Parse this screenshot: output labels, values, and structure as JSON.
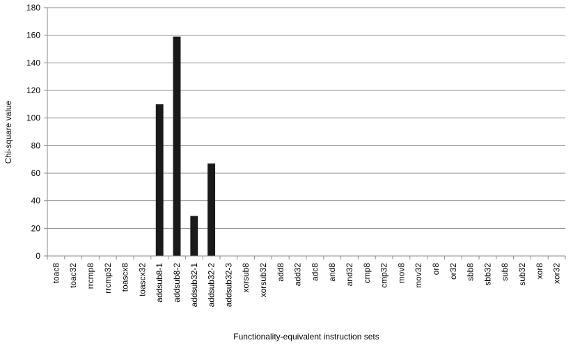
{
  "chart_data": {
    "type": "bar",
    "title": "",
    "xlabel": "Functionality-equivalent instruction sets",
    "ylabel": "Chi-square value",
    "ylim": [
      0,
      180
    ],
    "yticks": [
      0,
      20,
      40,
      60,
      80,
      100,
      120,
      140,
      160,
      180
    ],
    "grid": true,
    "bar_color": "#1a1a1a",
    "categories": [
      "toac8",
      "toac32",
      "rrcmp8",
      "rrcmp32",
      "toascx8",
      "toascx32",
      "addsub8-1",
      "addsub8-2",
      "addsub32-1",
      "addsub32-2",
      "addsub32-3",
      "xorsub8",
      "xorsub32",
      "add8",
      "add32",
      "adc8",
      "and8",
      "and32",
      "cmp8",
      "cmp32",
      "mov8",
      "mov32",
      "or8",
      "or32",
      "sbb8",
      "sbb32",
      "sub8",
      "sub32",
      "xor8",
      "xor32"
    ],
    "values": [
      0,
      0,
      0,
      0,
      0,
      0,
      110,
      159,
      29,
      67,
      0,
      0,
      0,
      0,
      0,
      0,
      0,
      0,
      0,
      0,
      0,
      0,
      0,
      0,
      0,
      0,
      0,
      0,
      0,
      0
    ]
  }
}
